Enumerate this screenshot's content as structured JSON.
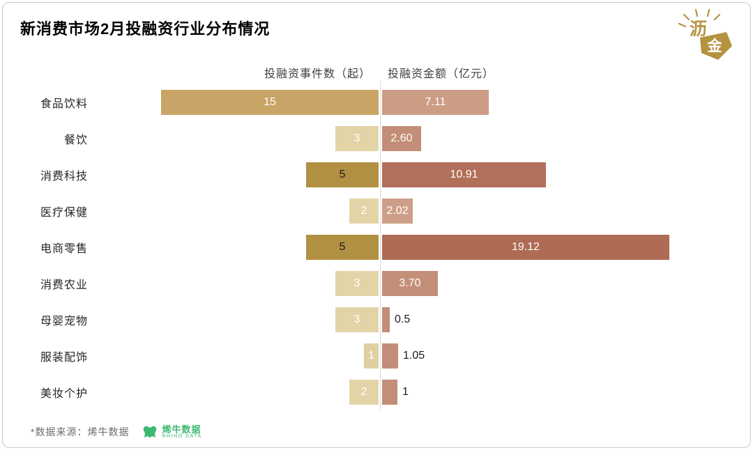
{
  "title": "新消费市场2月投融资行业分布情况",
  "logo": {
    "char_top": "沥",
    "char_bottom": "金"
  },
  "footer": {
    "source_note": "*数据来源：烯牛数据",
    "rhino_name": "烯牛数据",
    "rhino_sub": "RHINO DATA"
  },
  "colors": {
    "gold_dark": "#B29041",
    "gold_mid": "#C8A466",
    "gold_light": "#E3D4A8",
    "rose_dark": "#AF6B54",
    "rose_mid": "#C28E77",
    "rose_light": "#CE9F88",
    "axis_line": "#D9D9D9",
    "brand_gold": "#B5923F",
    "rhino_green": "#3FB873"
  },
  "chart_data": {
    "type": "bar",
    "orientation": "bidirectional-horizontal",
    "left_header": "投融资事件数（起）",
    "right_header": "投融资金额（亿元）",
    "left_axis_max": 15,
    "right_axis_max": 19.12,
    "legend_position": "none",
    "grid": false,
    "rows": [
      {
        "category": "食品饮料",
        "events": 15,
        "events_label": "15",
        "amount": 7.11,
        "amount_label": "7.11",
        "left_color": "#C8A466",
        "left_label_color": "#ffffff",
        "right_color": "#CC9C84",
        "right_label_color": "#ffffff",
        "amount_label_inside": true
      },
      {
        "category": "餐饮",
        "events": 3,
        "events_label": "3",
        "amount": 2.6,
        "amount_label": "2.60",
        "left_color": "#E3D4A8",
        "left_label_color": "#ffffff",
        "right_color": "#C28E77",
        "right_label_color": "#ffffff",
        "amount_label_inside": true
      },
      {
        "category": "消费科技",
        "events": 5,
        "events_label": "5",
        "amount": 10.91,
        "amount_label": "10.91",
        "left_color": "#B29041",
        "left_label_color": "#1a1a1a",
        "right_color": "#B26F59",
        "right_label_color": "#ffffff",
        "amount_label_inside": true
      },
      {
        "category": "医疗保健",
        "events": 2,
        "events_label": "2",
        "amount": 2.02,
        "amount_label": "2.02",
        "left_color": "#E3D4A8",
        "left_label_color": "#ffffff",
        "right_color": "#CE9F88",
        "right_label_color": "#ffffff",
        "amount_label_inside": true
      },
      {
        "category": "电商零售",
        "events": 5,
        "events_label": "5",
        "amount": 19.12,
        "amount_label": "19.12",
        "left_color": "#B29041",
        "left_label_color": "#1a1a1a",
        "right_color": "#AF6B54",
        "right_label_color": "#ffffff",
        "amount_label_inside": true
      },
      {
        "category": "消费农业",
        "events": 3,
        "events_label": "3",
        "amount": 3.7,
        "amount_label": "3.70",
        "left_color": "#E3D4A8",
        "left_label_color": "#ffffff",
        "right_color": "#C38F79",
        "right_label_color": "#ffffff",
        "amount_label_inside": true
      },
      {
        "category": "母婴宠物",
        "events": 3,
        "events_label": "3",
        "amount": 0.5,
        "amount_label": "0.5",
        "left_color": "#E3D4A8",
        "left_label_color": "#ffffff",
        "right_color": "#C28E77",
        "right_label_color": "#1a1a1a",
        "amount_label_inside": false
      },
      {
        "category": "服装配饰",
        "events": 1,
        "events_label": "1",
        "amount": 1.05,
        "amount_label": "1.05",
        "left_color": "#DFCFA2",
        "left_label_color": "#ffffff",
        "right_color": "#C28E77",
        "right_label_color": "#1a1a1a",
        "amount_label_inside": false
      },
      {
        "category": "美妆个护",
        "events": 2,
        "events_label": "2",
        "amount": 1,
        "amount_label": "1",
        "left_color": "#E3D4A8",
        "left_label_color": "#ffffff",
        "right_color": "#C28E77",
        "right_label_color": "#1a1a1a",
        "amount_label_inside": false
      }
    ]
  }
}
